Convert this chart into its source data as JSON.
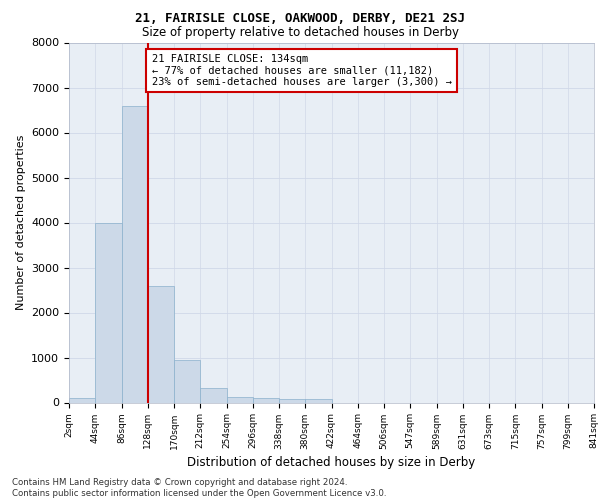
{
  "title": "21, FAIRISLE CLOSE, OAKWOOD, DERBY, DE21 2SJ",
  "subtitle": "Size of property relative to detached houses in Derby",
  "xlabel": "Distribution of detached houses by size in Derby",
  "ylabel": "Number of detached properties",
  "bin_labels": [
    "2sqm",
    "44sqm",
    "86sqm",
    "128sqm",
    "170sqm",
    "212sqm",
    "254sqm",
    "296sqm",
    "338sqm",
    "380sqm",
    "422sqm",
    "464sqm",
    "506sqm",
    "547sqm",
    "589sqm",
    "631sqm",
    "673sqm",
    "715sqm",
    "757sqm",
    "799sqm",
    "841sqm"
  ],
  "bar_heights": [
    100,
    4000,
    6600,
    2600,
    950,
    330,
    130,
    100,
    80,
    70,
    0,
    0,
    0,
    0,
    0,
    0,
    0,
    0,
    0,
    0
  ],
  "bar_color": "#ccd9e8",
  "bar_edgecolor": "#8ab0cc",
  "vline_pos": 3,
  "vline_color": "#cc0000",
  "annotation_text": "21 FAIRISLE CLOSE: 134sqm\n← 77% of detached houses are smaller (11,182)\n23% of semi-detached houses are larger (3,300) →",
  "annotation_box_color": "#cc0000",
  "ylim": [
    0,
    8000
  ],
  "yticks": [
    0,
    1000,
    2000,
    3000,
    4000,
    5000,
    6000,
    7000,
    8000
  ],
  "grid_color": "#d0d8e8",
  "bg_color": "#e8eef5",
  "footer": "Contains HM Land Registry data © Crown copyright and database right 2024.\nContains public sector information licensed under the Open Government Licence v3.0."
}
